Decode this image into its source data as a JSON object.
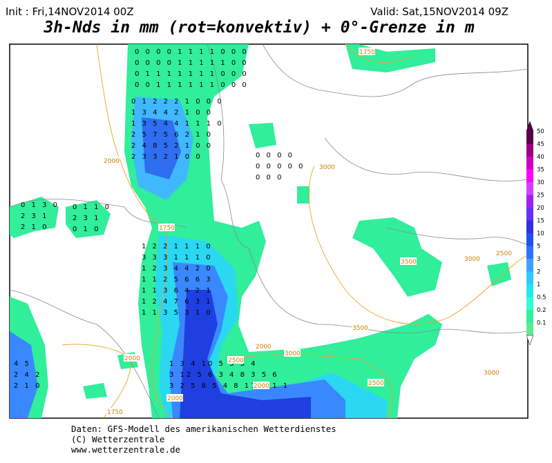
{
  "header": {
    "init": "Init : Fri,14NOV2014 00Z",
    "valid": "Valid: Sat,15NOV2014 09Z",
    "title": "3h-Nds in mm (rot=konvektiv) + 0°-Grenze in m"
  },
  "footer": [
    "Daten: GFS-Modell des amerikanischen Wetterdienstes",
    "(C) Wetterzentrale",
    "www.wetterzentrale.de"
  ],
  "legend": {
    "labels": [
      "50",
      "45",
      "40",
      "35",
      "30",
      "25",
      "20",
      "15",
      "10",
      "5",
      "3",
      "2",
      "1",
      "0.5",
      "0.2",
      "0.1"
    ],
    "colors": [
      "#5a0048",
      "#9a0084",
      "#cc00c0",
      "#ff00ff",
      "#d040ff",
      "#a020f0",
      "#6a2cff",
      "#3030e0",
      "#2050f0",
      "#3070ff",
      "#40a0ff",
      "#30c8ff",
      "#20e8f0",
      "#30ffd8",
      "#30f0a0",
      "#60e890"
    ]
  },
  "contour_labels": [
    "1750",
    "2000",
    "2000",
    "3000",
    "3000",
    "3500",
    "3500",
    "2500",
    "2500",
    "2000",
    "3000",
    "2500",
    "2000",
    "1750",
    "2000",
    "1750",
    "3000"
  ],
  "precip_clusters": [
    {
      "rows": [
        "0 0 0 0 1 1 1 1 0 0 0",
        "0 0 0 0 1 1 1 1 1 0 0",
        "0 1 1 1 1 1 1 1 0 0 0",
        "0 0 1 1 1 1 1 1 0 0 0"
      ]
    },
    {
      "rows": [
        "0 1 2 2 2 1 0 0 0",
        "1 3 4 4 2 1 0 0",
        "1 3 5 4 4 1 1 1 0",
        "2 5 7 5 6 2 1 0",
        "2 4 8 5 2 1 0 0",
        "2 3 3 2 1 0 0"
      ]
    },
    {
      "rows": [
        "1 2 2 1 1 1 0",
        "3 3 3 1 1 1 0",
        "1 2 3 4 4 2 0",
        "1 1 2 5 6 6 3",
        "1 1 3 6 4 2 1",
        "1 2 4 7 6 3 1",
        "1 1 3 5 3 1 0"
      ]
    },
    {
      "rows": [
        "1 3 4 10 5 3 3 4",
        "3 12 5 6 3 4 8 3 5 6",
        "3 2 5 8 5 4 8 11 5 1 1"
      ]
    },
    {
      "rows": [
        "0 1 3 0",
        "2 3 1",
        "2 1 0"
      ]
    },
    {
      "rows": [
        "0 1 1 0",
        "2 3 1",
        "0 1 0"
      ]
    },
    {
      "rows": [
        "0 0 0 0",
        "0 0 0 0 0",
        "0 0 0"
      ]
    },
    {
      "rows": [
        "4 5",
        "2 4 2",
        "2 1 0"
      ]
    }
  ]
}
